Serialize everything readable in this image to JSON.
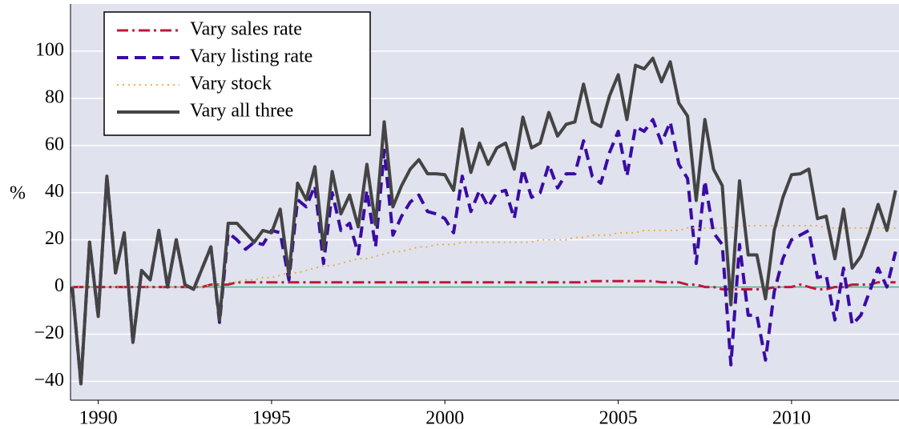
{
  "chart_data": {
    "type": "line",
    "y_label": "%",
    "x": [
      1989.25,
      1989.5,
      1989.75,
      1990,
      1990.25,
      1990.5,
      1990.75,
      1991,
      1991.25,
      1991.5,
      1991.75,
      1992,
      1992.25,
      1992.5,
      1992.75,
      1993,
      1993.25,
      1993.5,
      1993.75,
      1994,
      1994.25,
      1994.5,
      1994.75,
      1995,
      1995.25,
      1995.5,
      1995.75,
      1996,
      1996.25,
      1996.5,
      1996.75,
      1997,
      1997.25,
      1997.5,
      1997.75,
      1998,
      1998.25,
      1998.5,
      1998.75,
      1999,
      1999.25,
      1999.5,
      1999.75,
      2000,
      2000.25,
      2000.5,
      2000.75,
      2001,
      2001.25,
      2001.5,
      2001.75,
      2002,
      2002.25,
      2002.5,
      2002.75,
      2003,
      2003.25,
      2003.5,
      2003.75,
      2004,
      2004.25,
      2004.5,
      2004.75,
      2005,
      2005.25,
      2005.5,
      2005.75,
      2006,
      2006.25,
      2006.5,
      2006.75,
      2007,
      2007.25,
      2007.5,
      2007.75,
      2008,
      2008.25,
      2008.5,
      2008.75,
      2009,
      2009.25,
      2009.5,
      2009.75,
      2010,
      2010.25,
      2010.5,
      2010.75,
      2011,
      2011.25,
      2011.5,
      2011.75,
      2012,
      2012.25,
      2012.5,
      2012.75,
      2013
    ],
    "series": [
      {
        "name": "Vary sales rate",
        "color": "#c0163a",
        "linestyle": "dashdot",
        "values": [
          0,
          0,
          0,
          0,
          0,
          0,
          0,
          0,
          0,
          0,
          0,
          0,
          0,
          0,
          0,
          0,
          1,
          1,
          1,
          2,
          2,
          2,
          2,
          2,
          2,
          2,
          2,
          2,
          2,
          2,
          2,
          2,
          2,
          2,
          2,
          2,
          2,
          2,
          2,
          2,
          2,
          2,
          2,
          2,
          2,
          2,
          2,
          2,
          2,
          2,
          2,
          2,
          2,
          2,
          2,
          2,
          2,
          2,
          2,
          2,
          2.5,
          2.5,
          2.5,
          2.5,
          2.5,
          2.5,
          2.5,
          2.5,
          2,
          2,
          2,
          1,
          1,
          0,
          0,
          -1,
          -1,
          -1,
          -1,
          -1,
          -1,
          0,
          0,
          0,
          1,
          0,
          -1,
          -1,
          0,
          0,
          1,
          1,
          1,
          2,
          2,
          2
        ]
      },
      {
        "name": "Vary listing rate",
        "color": "#3a0ca3",
        "linestyle": "dashed",
        "values": [
          0,
          -41,
          19,
          -12.5,
          47,
          6,
          23,
          -23.5,
          7,
          3,
          24,
          0,
          20,
          1,
          -1,
          8,
          17,
          -15,
          23,
          20,
          16,
          19,
          18,
          24,
          23,
          3,
          37,
          34,
          43,
          10,
          40,
          24,
          27,
          14,
          41,
          17,
          58,
          22,
          30,
          36,
          39,
          32,
          31,
          29,
          23,
          47,
          32,
          41,
          34,
          40,
          41,
          29,
          50,
          38,
          40,
          52,
          42,
          48,
          48,
          62,
          47,
          44,
          57,
          66,
          47,
          68,
          66,
          71,
          61,
          70,
          52,
          46,
          10,
          45,
          23,
          18,
          -33,
          18,
          -12,
          -12,
          -31,
          -2,
          12,
          20,
          22,
          24,
          4,
          5,
          -14,
          8,
          -16,
          -12,
          -2,
          8,
          0,
          15
        ]
      },
      {
        "name": "Vary stock",
        "color": "#f0a830",
        "linestyle": "dotted",
        "values": [
          0,
          0,
          0,
          0,
          0,
          0,
          0,
          0,
          0,
          0,
          0,
          0,
          0,
          0,
          0,
          0,
          1,
          1,
          2,
          2,
          3,
          3,
          4,
          4,
          5,
          6,
          6,
          7,
          8,
          9,
          9,
          10,
          11,
          12,
          12,
          13,
          14,
          15,
          15,
          16,
          17,
          17,
          18,
          18,
          18,
          19,
          19,
          19,
          19,
          19,
          19,
          19,
          19,
          19,
          20,
          20,
          20,
          20,
          21,
          21,
          22,
          22,
          22,
          23,
          23,
          23,
          24,
          24,
          24,
          24,
          24,
          25,
          25,
          25,
          25,
          25,
          25,
          26,
          26,
          26,
          26,
          26,
          26,
          26,
          26,
          26,
          26,
          25,
          25,
          25,
          25,
          25,
          25,
          25,
          25,
          25
        ]
      },
      {
        "name": "Vary all three",
        "color": "#444444",
        "linestyle": "solid",
        "values": [
          0,
          -41,
          19,
          -12.5,
          47,
          6,
          23,
          -23.5,
          7,
          3,
          24,
          0,
          20,
          1,
          -1,
          8,
          17,
          -14,
          27,
          27,
          23,
          19,
          24,
          23,
          33,
          5,
          44,
          37,
          51,
          16,
          49,
          31,
          39,
          25.5,
          52,
          26.5,
          70,
          34,
          43,
          50,
          54,
          48,
          48,
          47.6,
          41,
          67,
          48.6,
          61,
          52,
          59,
          61,
          50,
          72,
          59,
          61,
          74,
          64,
          69,
          70,
          86,
          70,
          68,
          81,
          90,
          71,
          94,
          92.5,
          97,
          87,
          95.5,
          78,
          72.5,
          36.7,
          71,
          50,
          43,
          -7.5,
          45,
          13.6,
          13.6,
          -5,
          24,
          38,
          47.6,
          48,
          50,
          29,
          30,
          12,
          33,
          8,
          13,
          23,
          35,
          24,
          41
        ]
      }
    ],
    "xlim": [
      1989.2,
      2013.1
    ],
    "ylim": [
      -48,
      120
    ],
    "xticks": [
      1990,
      1995,
      2000,
      2005,
      2010
    ],
    "yticks": [
      {
        "value": -40,
        "label": "−40"
      },
      {
        "value": -20,
        "label": "−20"
      },
      0,
      20,
      40,
      60,
      80,
      100
    ],
    "grid": true,
    "zero_line_color": "#4caf7d",
    "background": "#e0e2ee",
    "legend": "upper left"
  }
}
